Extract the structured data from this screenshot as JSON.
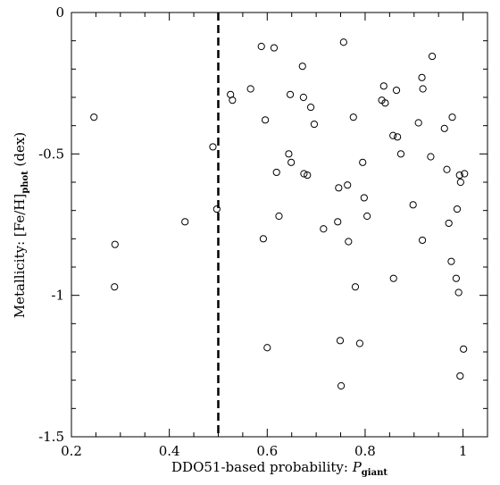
{
  "chart_data": {
    "type": "scatter",
    "xlabel_main": "DDO51-based probability: ",
    "xlabel_var": "P",
    "xlabel_sub": "giant",
    "ylabel_main": "Metallicity: [Fe/H]",
    "ylabel_sub": "phot",
    "ylabel_unit": " (dex)",
    "xlim": [
      0.2,
      1.05
    ],
    "ylim": [
      -1.5,
      0
    ],
    "xticks": [
      0.2,
      0.4,
      0.6,
      0.8,
      1.0
    ],
    "xtick_labels": [
      "0.2",
      "0.4",
      "0.6",
      "0.8",
      "1"
    ],
    "yticks": [
      0,
      -0.5,
      -1,
      -1.5
    ],
    "ytick_labels": [
      "0",
      "-0.5",
      "-1",
      "-1.5"
    ],
    "vline_x": 0.5,
    "grid": false,
    "points": [
      {
        "x": 0.246,
        "y": -0.37
      },
      {
        "x": 0.289,
        "y": -0.82
      },
      {
        "x": 0.288,
        "y": -0.97
      },
      {
        "x": 0.432,
        "y": -0.74
      },
      {
        "x": 0.489,
        "y": -0.475
      },
      {
        "x": 0.497,
        "y": -0.695
      },
      {
        "x": 0.525,
        "y": -0.29
      },
      {
        "x": 0.529,
        "y": -0.31
      },
      {
        "x": 0.566,
        "y": -0.27
      },
      {
        "x": 0.588,
        "y": -0.12
      },
      {
        "x": 0.592,
        "y": -0.8
      },
      {
        "x": 0.596,
        "y": -0.38
      },
      {
        "x": 0.6,
        "y": -1.185
      },
      {
        "x": 0.614,
        "y": -0.125
      },
      {
        "x": 0.619,
        "y": -0.565
      },
      {
        "x": 0.624,
        "y": -0.72
      },
      {
        "x": 0.644,
        "y": -0.5
      },
      {
        "x": 0.647,
        "y": -0.29
      },
      {
        "x": 0.649,
        "y": -0.53
      },
      {
        "x": 0.672,
        "y": -0.19
      },
      {
        "x": 0.674,
        "y": -0.3
      },
      {
        "x": 0.675,
        "y": -0.57
      },
      {
        "x": 0.682,
        "y": -0.575
      },
      {
        "x": 0.689,
        "y": -0.335
      },
      {
        "x": 0.696,
        "y": -0.395
      },
      {
        "x": 0.715,
        "y": -0.765
      },
      {
        "x": 0.744,
        "y": -0.74
      },
      {
        "x": 0.746,
        "y": -0.62
      },
      {
        "x": 0.749,
        "y": -1.16
      },
      {
        "x": 0.751,
        "y": -1.32
      },
      {
        "x": 0.756,
        "y": -0.105
      },
      {
        "x": 0.764,
        "y": -0.61
      },
      {
        "x": 0.766,
        "y": -0.81
      },
      {
        "x": 0.776,
        "y": -0.37
      },
      {
        "x": 0.78,
        "y": -0.97
      },
      {
        "x": 0.789,
        "y": -1.17
      },
      {
        "x": 0.795,
        "y": -0.53
      },
      {
        "x": 0.798,
        "y": -0.655
      },
      {
        "x": 0.804,
        "y": -0.72
      },
      {
        "x": 0.834,
        "y": -0.31
      },
      {
        "x": 0.838,
        "y": -0.26
      },
      {
        "x": 0.841,
        "y": -0.32
      },
      {
        "x": 0.857,
        "y": -0.435
      },
      {
        "x": 0.858,
        "y": -0.94
      },
      {
        "x": 0.864,
        "y": -0.275
      },
      {
        "x": 0.866,
        "y": -0.44
      },
      {
        "x": 0.873,
        "y": -0.5
      },
      {
        "x": 0.898,
        "y": -0.68
      },
      {
        "x": 0.909,
        "y": -0.39
      },
      {
        "x": 0.916,
        "y": -0.23
      },
      {
        "x": 0.917,
        "y": -0.805
      },
      {
        "x": 0.918,
        "y": -0.27
      },
      {
        "x": 0.934,
        "y": -0.51
      },
      {
        "x": 0.937,
        "y": -0.155
      },
      {
        "x": 0.962,
        "y": -0.41
      },
      {
        "x": 0.967,
        "y": -0.555
      },
      {
        "x": 0.971,
        "y": -0.745
      },
      {
        "x": 0.976,
        "y": -0.88
      },
      {
        "x": 0.978,
        "y": -0.37
      },
      {
        "x": 0.986,
        "y": -0.94
      },
      {
        "x": 0.988,
        "y": -0.695
      },
      {
        "x": 0.991,
        "y": -0.99
      },
      {
        "x": 0.993,
        "y": -0.575
      },
      {
        "x": 0.994,
        "y": -1.285
      },
      {
        "x": 0.995,
        "y": -0.6
      },
      {
        "x": 1.001,
        "y": -1.19
      },
      {
        "x": 1.003,
        "y": -0.57
      }
    ]
  }
}
